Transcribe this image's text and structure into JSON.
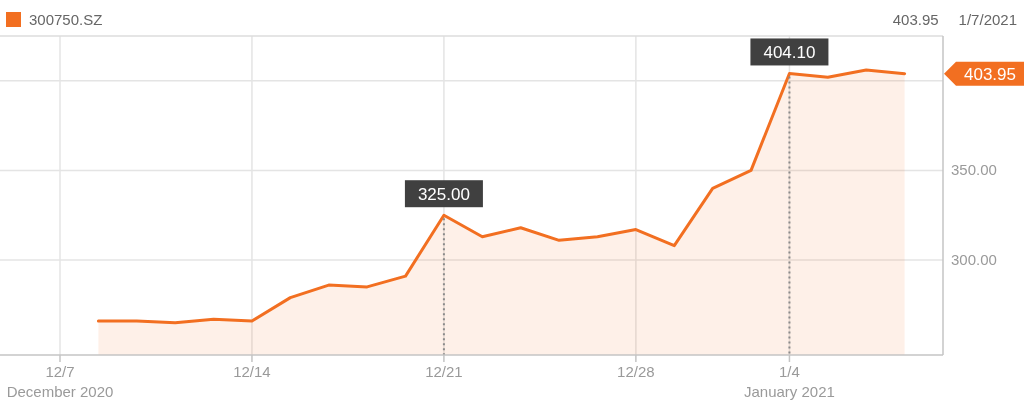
{
  "chart_data": {
    "type": "area",
    "categories": [
      "12/7\nDecember 2020",
      null,
      null,
      null,
      null,
      "12/14",
      null,
      null,
      null,
      null,
      "12/21",
      null,
      null,
      null,
      null,
      "12/28",
      null,
      null,
      null,
      "1/4\nJanuary 2021",
      null,
      null,
      null
    ],
    "series": [
      {
        "name": "300750.SZ",
        "color": "#f26f21",
        "values": [
          null,
          266,
          266,
          265,
          267,
          266,
          279,
          286,
          285,
          291,
          325,
          313,
          318,
          311,
          313,
          317,
          308,
          340,
          350,
          404.1,
          402,
          406,
          403.95
        ],
        "value_labels": [
          null,
          null,
          null,
          null,
          null,
          null,
          null,
          null,
          null,
          null,
          "325.00",
          null,
          null,
          null,
          null,
          null,
          null,
          null,
          null,
          "404.10",
          null,
          null,
          null
        ]
      }
    ],
    "ylim": [
      247,
      425
    ],
    "yticks": [
      {
        "value": 300,
        "label": "300.00"
      },
      {
        "value": 350,
        "label": "350.00"
      },
      {
        "value": 400,
        "label": null
      }
    ],
    "grid": true,
    "legend": "top left",
    "annotations": [
      "403.95",
      "1/7/2021",
      "403.95"
    ]
  }
}
